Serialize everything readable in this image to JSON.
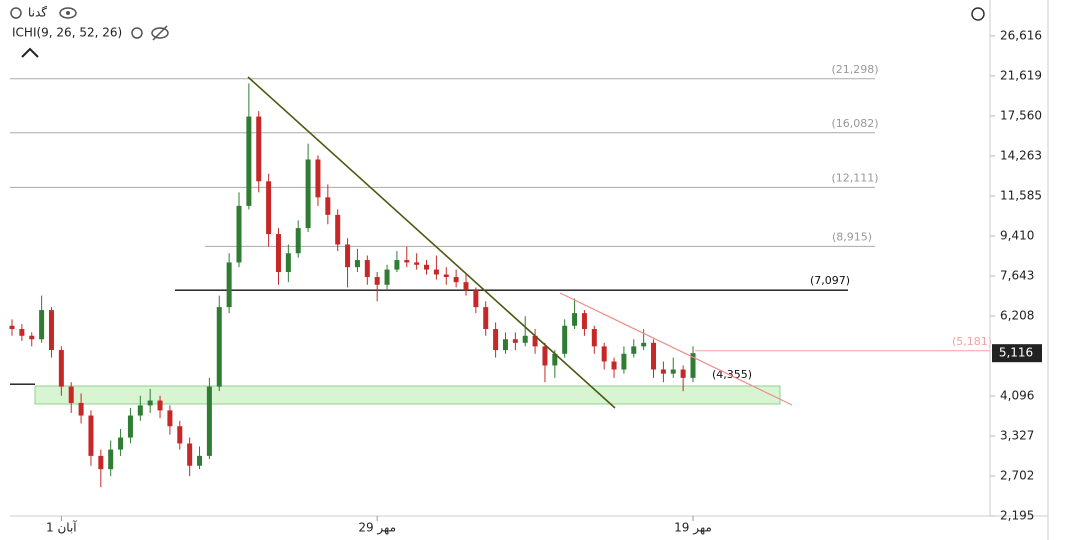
{
  "header": {
    "symbol": "گدنا",
    "indicator": "ICHI(9, 26, 52, 26)"
  },
  "chart_data": {
    "type": "candlestick",
    "log_scale": true,
    "up_color": "#2e7d32",
    "down_color": "#c62828",
    "categories": [
      null,
      null,
      null,
      null,
      null,
      "1 آبان",
      null,
      null,
      null,
      null,
      null,
      null,
      null,
      null,
      null,
      null,
      null,
      null,
      null,
      null,
      null,
      null,
      null,
      null,
      null,
      null,
      null,
      null,
      null,
      null,
      null,
      null,
      null,
      null,
      null,
      null,
      null,
      "29 مهر",
      null,
      null,
      null,
      null,
      null,
      null,
      null,
      null,
      null,
      null,
      null,
      null,
      null,
      null,
      null,
      null,
      null,
      null,
      null,
      null,
      null,
      null,
      null,
      null,
      null,
      null,
      null,
      null,
      null,
      null,
      null,
      "19 مهر"
    ],
    "open": [
      5900,
      5800,
      5600,
      5500,
      6400,
      5200,
      4300,
      3950,
      3700,
      3000,
      2800,
      3100,
      3300,
      3700,
      3900,
      4000,
      3800,
      3500,
      3200,
      2850,
      3000,
      4300,
      6500,
      8200,
      11000,
      17500,
      12500,
      9500,
      7800,
      8600,
      9800,
      14000,
      11500,
      10500,
      9000,
      8000,
      8300,
      7600,
      7300,
      7900,
      8300,
      8200,
      8100,
      7900,
      7700,
      7600,
      7400,
      7100,
      6500,
      5800,
      5200,
      5500,
      5400,
      5600,
      5300,
      4800,
      5100,
      5900,
      6300,
      5800,
      5300,
      4900,
      4700,
      5100,
      5300,
      5400,
      4700,
      4600,
      4700,
      4500
    ],
    "high": [
      6100,
      5950,
      5700,
      6900,
      6500,
      5300,
      4400,
      4150,
      3800,
      3100,
      3250,
      3450,
      3850,
      4100,
      4250,
      4100,
      3900,
      3600,
      3300,
      3150,
      4500,
      6900,
      8600,
      11800,
      20800,
      18000,
      13000,
      9800,
      9000,
      10200,
      15200,
      14300,
      12300,
      10800,
      9300,
      8800,
      8500,
      7800,
      8100,
      8700,
      8900,
      8600,
      8300,
      8500,
      8000,
      7900,
      7700,
      7200,
      6700,
      6000,
      5700,
      5700,
      6200,
      5800,
      5400,
      5200,
      6100,
      6800,
      6400,
      5900,
      5400,
      5000,
      5300,
      5500,
      5800,
      5500,
      4900,
      5000,
      4800,
      5300
    ],
    "low": [
      5600,
      5450,
      5300,
      5400,
      5000,
      4100,
      3750,
      3550,
      2850,
      2550,
      2700,
      3000,
      3200,
      3600,
      3750,
      3650,
      3350,
      3100,
      2700,
      2800,
      2950,
      4200,
      6300,
      8000,
      10800,
      11800,
      8900,
      7300,
      7400,
      8400,
      9600,
      11000,
      10000,
      8700,
      7200,
      7800,
      7300,
      6700,
      7100,
      7800,
      8000,
      7900,
      7700,
      7500,
      7300,
      7200,
      6900,
      6300,
      5600,
      5000,
      5100,
      5200,
      5300,
      5100,
      4400,
      4500,
      5000,
      5800,
      5600,
      5100,
      4700,
      4500,
      4600,
      5000,
      5200,
      4500,
      4400,
      4500,
      4200,
      4400
    ],
    "close": [
      5800,
      5600,
      5500,
      6400,
      5200,
      4300,
      3950,
      3700,
      3000,
      2800,
      3100,
      3300,
      3700,
      3900,
      4000,
      3800,
      3500,
      3200,
      2850,
      3000,
      4300,
      6500,
      8200,
      11000,
      17500,
      12500,
      9500,
      7800,
      8600,
      9800,
      14000,
      11500,
      10500,
      9000,
      8000,
      8300,
      7600,
      7300,
      7900,
      8300,
      8200,
      8100,
      7900,
      7700,
      7600,
      7400,
      7100,
      6500,
      5800,
      5200,
      5500,
      5400,
      5600,
      5300,
      4800,
      5100,
      5900,
      6300,
      5800,
      5300,
      4900,
      4700,
      5100,
      5300,
      5400,
      4700,
      4600,
      4700,
      4500,
      5116
    ],
    "ylim": [
      2195,
      32070
    ],
    "yticks": [
      {
        "value": 2195,
        "label": "2,195"
      },
      {
        "value": 2702,
        "label": "2,702"
      },
      {
        "value": 3327,
        "label": "3,327"
      },
      {
        "value": 4096,
        "label": "4,096"
      },
      {
        "value": 6208,
        "label": "6,208"
      },
      {
        "value": 7643,
        "label": "7,643"
      },
      {
        "value": 9410,
        "label": "9,410"
      },
      {
        "value": 11585,
        "label": "11,585"
      },
      {
        "value": 14263,
        "label": "14,263"
      },
      {
        "value": 17560,
        "label": "17,560"
      },
      {
        "value": 21619,
        "label": "21,619"
      },
      {
        "value": 26616,
        "label": "26,616"
      }
    ],
    "last_price": {
      "value": 5116,
      "label": "5,116"
    },
    "levels": [
      {
        "value": 21298,
        "label": "(21,298)",
        "color": "#aaaaaa"
      },
      {
        "value": 16082,
        "label": "(16,082)",
        "color": "#aaaaaa"
      },
      {
        "value": 12111,
        "label": "(12,111)",
        "color": "#aaaaaa"
      },
      {
        "value": 8915,
        "label": "(8,915)",
        "color": "#aaaaaa"
      },
      {
        "value": 7097,
        "label": "(7,097)",
        "color": "#111111"
      },
      {
        "value": 5181,
        "label": "(5,181)",
        "color": "#f4a0a0"
      },
      {
        "value": 4355,
        "label": "(4,355)",
        "color": "#111111"
      }
    ]
  }
}
